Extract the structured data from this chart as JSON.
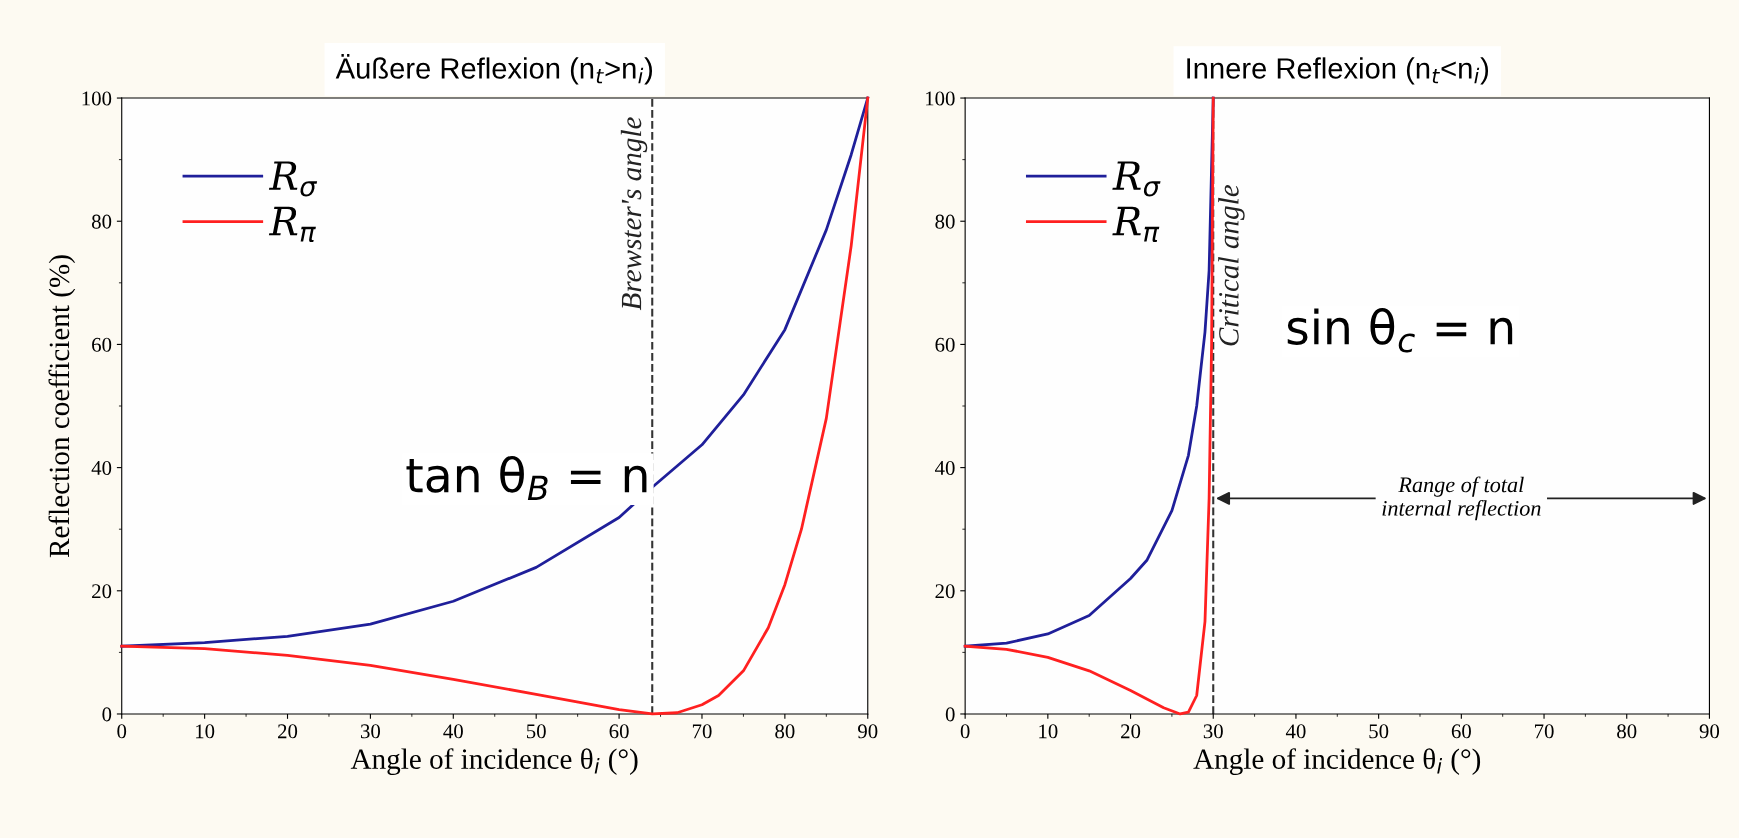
{
  "chart_data": [
    {
      "type": "line",
      "title": "Äußere Reflexion (n$_{t}$>n$_{i}$)",
      "xlabel": "Angle of incidence θ$_{i}$ (°)",
      "ylabel": "Reflection coefficient (%)",
      "xlim": [
        0,
        90
      ],
      "ylim": [
        0,
        100
      ],
      "xticks": [
        0,
        10,
        20,
        30,
        40,
        50,
        60,
        70,
        80,
        90
      ],
      "yticks": [
        0,
        20,
        40,
        60,
        80,
        100
      ],
      "legend": "top left",
      "grid": false,
      "series": [
        {
          "name": "R$_{σ}$",
          "color": "#1f1f9a",
          "x": [
            0,
            10,
            20,
            30,
            40,
            50,
            60,
            64,
            70,
            75,
            80,
            85,
            88,
            90
          ],
          "values": [
            11,
            11.6,
            12.6,
            14.6,
            18.3,
            23.8,
            31.9,
            36.8,
            43.7,
            51.8,
            62.4,
            78.6,
            90.8,
            100
          ]
        },
        {
          "name": "R$_{π}$",
          "color": "#ff2020",
          "x": [
            0,
            10,
            20,
            30,
            40,
            50,
            60,
            64,
            67,
            70,
            72,
            75,
            78,
            80,
            82,
            85,
            88,
            90
          ],
          "values": [
            11,
            10.6,
            9.5,
            7.9,
            5.6,
            3.2,
            0.7,
            0,
            0.2,
            1.5,
            3,
            7,
            14,
            21,
            30,
            48,
            76,
            100
          ]
        }
      ],
      "ref_lines": [
        {
          "axis": "x",
          "value": 64,
          "label": "Brewster's angle",
          "color": "#333333",
          "line_style": "dashed"
        }
      ],
      "annotations": [
        "tan θ$_{B}$ = n"
      ]
    },
    {
      "type": "line",
      "title": "Innere Reflexion (n$_{t}$<n$_{i}$)",
      "xlabel": "Angle of incidence θ$_{i}$ (°)",
      "xlim": [
        0,
        90
      ],
      "ylim": [
        0,
        100
      ],
      "xticks": [
        0,
        10,
        20,
        30,
        40,
        50,
        60,
        70,
        80,
        90
      ],
      "yticks": [
        0,
        20,
        40,
        60,
        80,
        100
      ],
      "legend": "top left",
      "grid": false,
      "series": [
        {
          "name": "R$_{σ}$",
          "color": "#1f1f9a",
          "x": [
            0,
            5,
            10,
            15,
            20,
            22,
            25,
            27,
            28,
            29,
            29.5,
            30
          ],
          "values": [
            11,
            11.5,
            13,
            16,
            22,
            25,
            33,
            42,
            50,
            62,
            72,
            100
          ]
        },
        {
          "name": "R$_{π}$",
          "color": "#ff2020",
          "x": [
            0,
            5,
            10,
            15,
            20,
            24,
            26,
            27,
            28,
            29,
            29.5,
            29.8,
            30
          ],
          "values": [
            11,
            10.5,
            9.2,
            7,
            3.8,
            1,
            0,
            0.3,
            3,
            15,
            35,
            60,
            100
          ]
        }
      ],
      "ref_lines": [
        {
          "axis": "x",
          "value": 30,
          "label": "Critical angle",
          "color": "#333333",
          "line_style": "dashed"
        }
      ],
      "annotations": [
        "sin θ$_{c}$ = n",
        "Range of total\ninternal reflection"
      ]
    }
  ]
}
